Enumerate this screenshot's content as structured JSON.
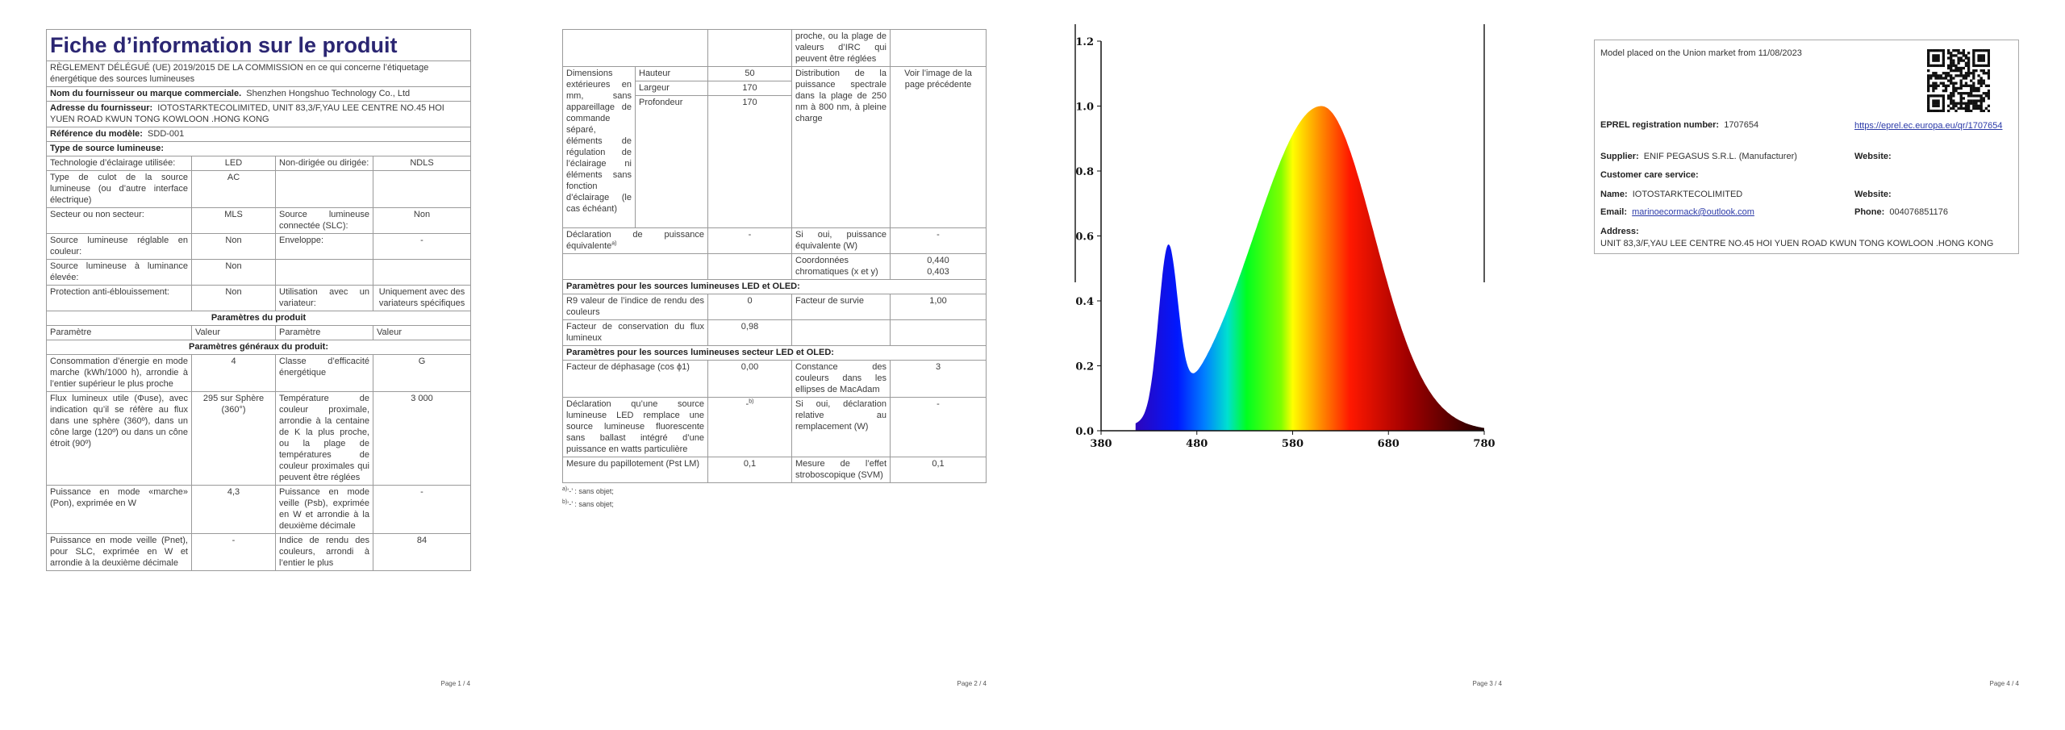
{
  "page1": {
    "title": "Fiche d’information sur le produit",
    "regulation": "RÈGLEMENT DÉLÉGUÉ (UE) 2019/2015 DE LA COMMISSION en ce qui concerne l’étiquetage énergétique des sources lumineuses",
    "supplier_label": "Nom du fournisseur ou marque commerciale.",
    "supplier": "Shenzhen Hongshuo Technology Co., Ltd",
    "address_label": "Adresse du fournisseur:",
    "address": "IOTOSTARKTECOLIMITED, UNIT 83,3/F,YAU LEE CENTRE NO.45 HOI YUEN ROAD KWUN TONG KOWLOON .HONG KONG",
    "model_label": "Référence du modèle:",
    "model": "SDD-001",
    "source_type": "Type de source lumineuse:",
    "type_rows": [
      [
        "Technologie d’éclairage utilisée:",
        "LED",
        "Non-dirigée ou dirigée:",
        "NDLS"
      ],
      [
        "Type de culot de la source lumineuse (ou d’autre interface électrique)",
        "AC"
      ],
      [
        "Secteur ou non secteur:",
        "MLS",
        "Source lumineuse connectée (SLC):",
        "Non"
      ],
      [
        "Source lumineuse réglable en couleur:",
        "Non",
        "Enveloppe:",
        "-"
      ],
      [
        "Source lumineuse à luminance élevée:",
        "Non"
      ],
      [
        "Protection anti-éblouissement:",
        "Non",
        "Utilisation avec un variateur:",
        "Uniquement avec des variateurs spécifiques"
      ]
    ],
    "params_heading": "Paramètres du produit",
    "col_heads": [
      "Paramètre",
      "Valeur",
      "Paramètre",
      "Valeur"
    ],
    "general_heading": "Paramètres généraux du produit:",
    "general_rows": [
      [
        "Consommation d’énergie en mode marche (kWh/1000 h), arrondie à l’entier supérieur le plus proche",
        "4",
        "Classe d’efficacité énergétique",
        "G"
      ],
      [
        "Flux lumineux utile (Φuse), avec indication qu’il se réfère au flux dans une sphère (360º), dans un cône large (120º) ou dans un cône étroit (90º)",
        "295 sur Sphère (360°)",
        "Température de couleur proximale, arrondie à la centaine de K la plus proche, ou la plage de températures de couleur proximales qui peuvent être réglées",
        "3 000"
      ],
      [
        "Puissance en mode «marche» (Pon), exprimée en W",
        "4,3",
        "Puissance en mode veille (Psb), exprimée en W et arrondie à la deuxième décimale",
        "-"
      ],
      [
        "Puissance en mode veille (Pnet), pour SLC, exprimée en W et arrondie à la deuxième décimale",
        "-",
        "Indice de rendu des couleurs, arrondi à l’entier le plus",
        "84"
      ]
    ],
    "footer": "Page 1 / 4"
  },
  "page2": {
    "cri_cont": "proche, ou la plage de valeurs d’IRC qui peuvent être réglées",
    "dim_label": "Dimensions extérieures en mm, sans appareillage de commande séparé, éléments de régulation de l’éclairage ni éléments sans fonction d’éclairage (le cas échéant)",
    "dims": [
      [
        "Hauteur",
        "50"
      ],
      [
        "Largeur",
        "170"
      ],
      [
        "Profondeur",
        "170"
      ]
    ],
    "spd_label": "Distribution de la puissance spectrale dans la plage de 250 nm à 800 nm, à pleine charge",
    "spd_value": "Voir l’image de la page précédente",
    "equiv_label": "Déclaration de puissance équivalente",
    "equiv_note": "a)",
    "equiv_value": "-",
    "equiv_w_label": "Si oui, puissance équivalente (W)",
    "equiv_w_value": "-",
    "chroma_label": "Coordonnées chromatiques (x et y)",
    "chroma_values": [
      "0,440",
      "0,403"
    ],
    "led_heading": "Paramètres pour les sources lumineuses LED et OLED:",
    "led_rows": [
      [
        "R9 valeur de l’indice de rendu des couleurs",
        "0",
        "Facteur de survie",
        "1,00"
      ],
      [
        "Facteur de conservation du flux lumineux",
        "0,98"
      ]
    ],
    "mains_heading": "Paramètres pour les sources lumineuses secteur LED et OLED:",
    "mains_rows": [
      [
        "Facteur de déphasage (cos ϕ1)",
        "0,00",
        "Constance des couleurs dans les ellipses de MacAdam",
        "3"
      ],
      [
        "Déclaration qu’une source lumineuse LED remplace une source lumineuse fluorescente sans ballast intégré d’une puissance en watts particulière",
        "-",
        "Si oui, déclaration relative au remplacement (W)",
        "-"
      ],
      [
        "Mesure du papillotement (Pst LM)",
        "0,1",
        "Mesure de l’effet stroboscopique (SVM)",
        "0,1"
      ]
    ],
    "replace_note": "b)",
    "footnotes": [
      {
        "mark": "a)",
        "text": "‘-’ : sans objet;"
      },
      {
        "mark": "b)",
        "text": "‘-’ : sans objet;"
      }
    ],
    "footer": "Page 2 / 4"
  },
  "page3": {
    "spectrum": {
      "yticks": [
        "0.0",
        "0.2",
        "0.4",
        "0.6",
        "0.8",
        "1.0",
        "1.2"
      ],
      "xticks": [
        "380",
        "480",
        "580",
        "680",
        "780"
      ]
    },
    "footer": "Page 3 / 4"
  },
  "page4": {
    "placed": "Model placed on the Union market from 11/08/2023",
    "eprel_label": "EPREL registration number:",
    "eprel": "1707654",
    "eprel_link": "https://eprel.ec.europa.eu/qr/1707654",
    "supplier_label": "Supplier:",
    "supplier": "ENIF PEGASUS S.R.L. (Manufacturer)",
    "website_label": "Website:",
    "care_label": "Customer care service:",
    "name_label": "Name:",
    "name": "IOTOSTARKTECOLIMITED",
    "website2_label": "Website:",
    "email_label": "Email:",
    "email": "marinoecormack@outlook.com",
    "phone_label": "Phone:",
    "phone": "004076851176",
    "address_label": "Address:",
    "address": "UNIT 83,3/F,YAU LEE CENTRE NO.45 HOI YUEN ROAD KWUN TONG KOWLOON .HONG KONG",
    "footer": "Page 4 / 4"
  }
}
